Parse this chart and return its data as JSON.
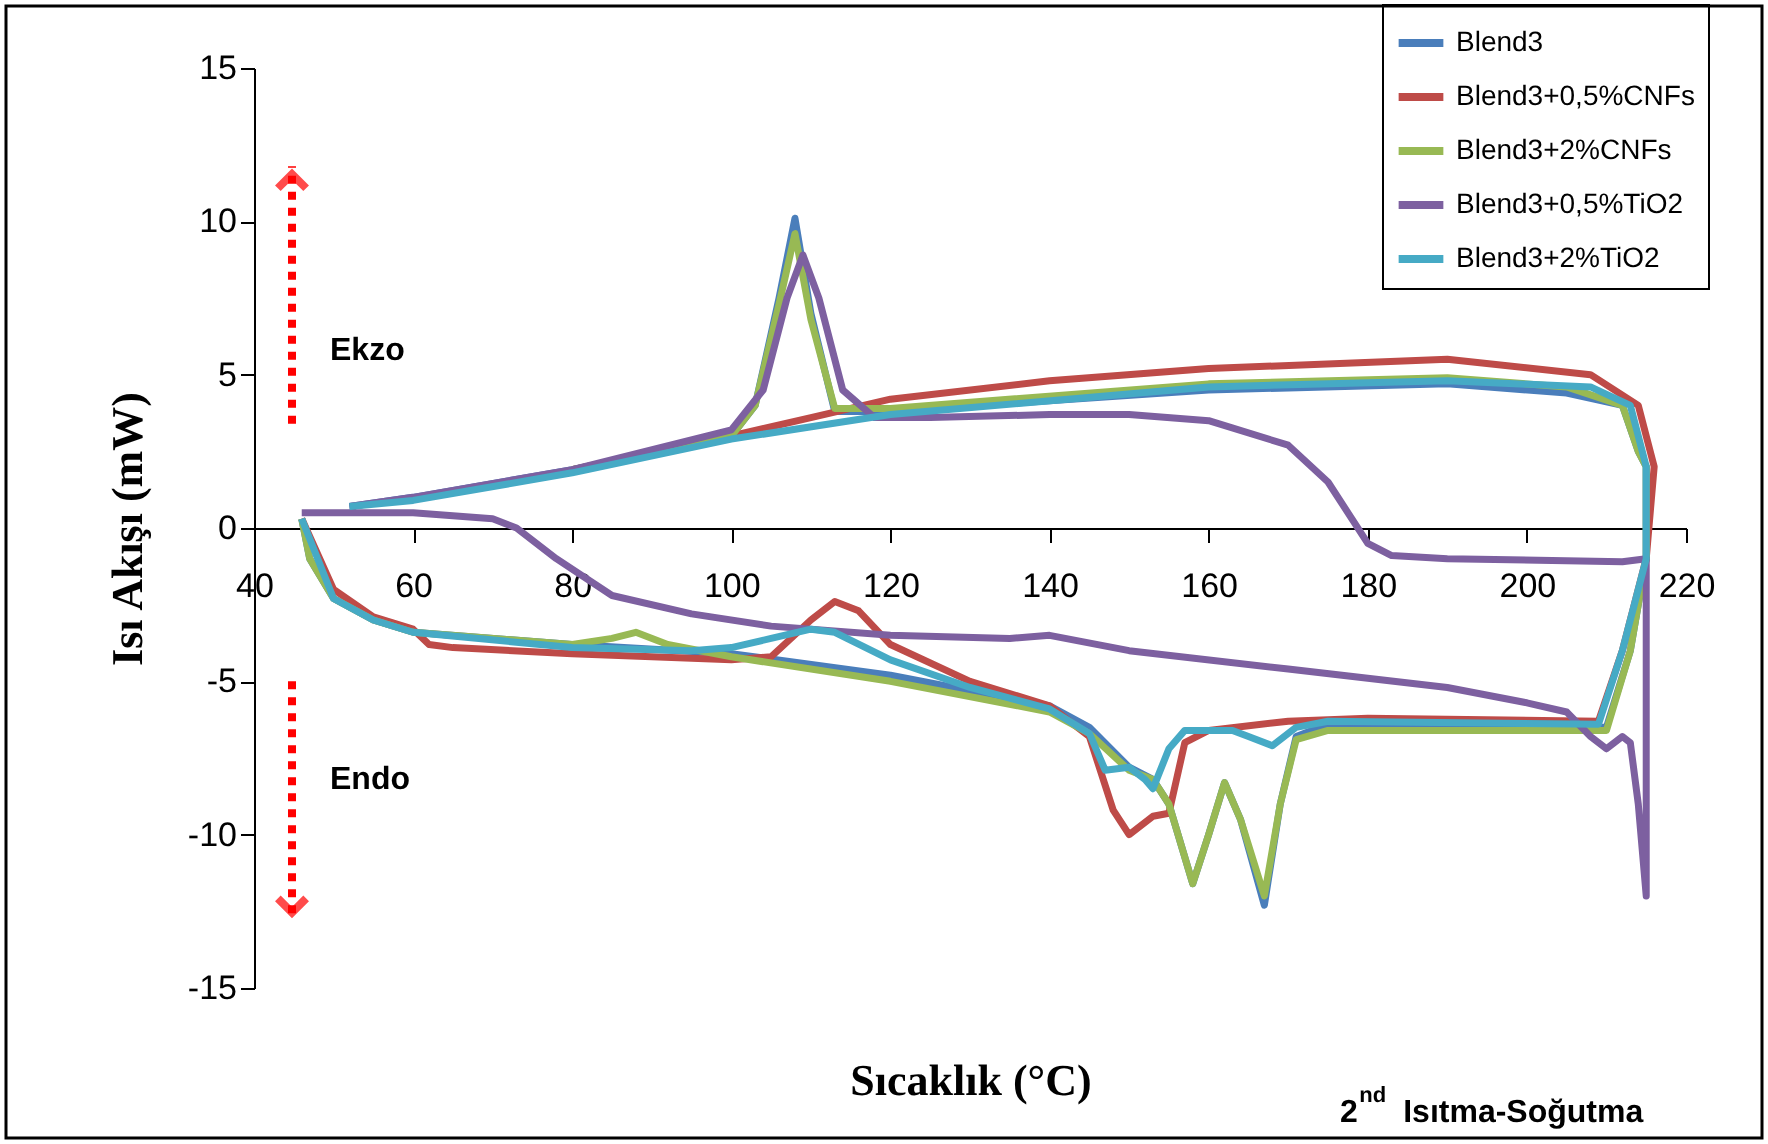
{
  "chart_data": {
    "type": "line",
    "xlabel": "Sıcaklık (°C)",
    "ylabel": "Isı Akışı (mW)",
    "xlim": [
      40,
      220
    ],
    "xticks": [
      40,
      60,
      80,
      100,
      120,
      140,
      160,
      180,
      200,
      220
    ],
    "ylim": [
      -15,
      15
    ],
    "yticks": [
      -15,
      -10,
      -5,
      0,
      5,
      10,
      15
    ],
    "grid": false,
    "legend": "top right",
    "marker": "none",
    "line_style": "solid",
    "annotations": [
      "Ekzo",
      "Endo",
      "2$^{nd}$ Isıtma-Soğutma"
    ],
    "series": [
      {
        "name": "Blend3",
        "color": "#4a7ebb",
        "x": [
          46,
          47,
          50,
          55,
          60,
          80,
          100,
          120,
          140,
          145,
          150,
          153,
          155,
          158,
          160,
          162,
          164,
          167,
          169,
          171,
          175,
          200,
          210,
          213,
          215,
          215,
          214,
          212,
          205,
          190,
          160,
          120,
          113,
          110,
          108,
          106,
          103,
          100,
          80,
          60,
          52
        ],
        "values": [
          0.3,
          -1,
          -2.3,
          -3,
          -3.4,
          -3.8,
          -4.1,
          -4.8,
          -5.8,
          -6.5,
          -7.8,
          -8.2,
          -9,
          -11.6,
          -10,
          -8.3,
          -9.5,
          -12.3,
          -9,
          -6.8,
          -6.4,
          -6.5,
          -6.5,
          -4,
          -1,
          2,
          2.5,
          4,
          4.4,
          4.7,
          4.5,
          3.8,
          3.8,
          7,
          10.1,
          7.5,
          4,
          3,
          1.9,
          1,
          0.7
        ]
      },
      {
        "name": "Blend3+0,5%CNFs",
        "color": "#be4b48",
        "x": [
          46,
          50,
          55,
          60,
          62,
          65,
          80,
          100,
          105,
          110,
          113,
          116,
          120,
          130,
          140,
          145,
          148,
          150,
          153,
          155,
          157,
          160,
          170,
          180,
          209,
          212,
          215,
          216,
          214,
          208,
          190,
          160,
          140,
          120,
          110,
          100,
          80
        ],
        "values": [
          0.3,
          -2,
          -2.9,
          -3.3,
          -3.8,
          -3.9,
          -4.1,
          -4.3,
          -4.2,
          -3,
          -2.4,
          -2.7,
          -3.8,
          -5,
          -5.8,
          -6.8,
          -9.2,
          -10,
          -9.4,
          -9.3,
          -7,
          -6.6,
          -6.3,
          -6.2,
          -6.3,
          -4,
          -1,
          2,
          4,
          5,
          5.5,
          5.2,
          4.8,
          4.2,
          3.6,
          3,
          1.9
        ]
      },
      {
        "name": "Blend3+2%CNFs",
        "color": "#98b954",
        "x": [
          46,
          47,
          50,
          55,
          60,
          80,
          85,
          88,
          92,
          100,
          120,
          140,
          145,
          150,
          153,
          155,
          158,
          160,
          162,
          164,
          167,
          169,
          171,
          175,
          200,
          210,
          213,
          215,
          215,
          214,
          212,
          205,
          190,
          160,
          120,
          113,
          110,
          108,
          106,
          103,
          100,
          80
        ],
        "values": [
          0.3,
          -1,
          -2.3,
          -3,
          -3.4,
          -3.8,
          -3.6,
          -3.4,
          -3.8,
          -4.2,
          -5,
          -6,
          -6.7,
          -7.9,
          -8.2,
          -9,
          -11.6,
          -10,
          -8.3,
          -9.5,
          -12,
          -9,
          -6.9,
          -6.6,
          -6.6,
          -6.6,
          -4,
          -1,
          2,
          2.5,
          4,
          4.6,
          4.9,
          4.7,
          3.9,
          3.9,
          6.8,
          9.6,
          7.3,
          4,
          3,
          1.9
        ]
      },
      {
        "name": "Blend3+0,5%TiO2",
        "color": "#7d60a0",
        "x": [
          46,
          60,
          70,
          73,
          78,
          85,
          95,
          105,
          120,
          135,
          140,
          150,
          170,
          190,
          200,
          205,
          208,
          210,
          212,
          213,
          214,
          215,
          215,
          212,
          190,
          183,
          180,
          175,
          170,
          160,
          150,
          140,
          125,
          118,
          114,
          111,
          109,
          107,
          104,
          100,
          80,
          60,
          52
        ],
        "values": [
          0.5,
          0.5,
          0.3,
          0,
          -1,
          -2.2,
          -2.8,
          -3.2,
          -3.5,
          -3.6,
          -3.5,
          -4,
          -4.6,
          -5.2,
          -5.7,
          -6,
          -6.8,
          -7.2,
          -6.8,
          -7,
          -9,
          -12,
          -1,
          -1.1,
          -1,
          -0.9,
          -0.5,
          1.5,
          2.7,
          3.5,
          3.7,
          3.7,
          3.6,
          3.6,
          4.5,
          7.5,
          8.9,
          7.5,
          4.5,
          3.2,
          1.9,
          1,
          0.7
        ]
      },
      {
        "name": "Blend3+2%TiO2",
        "color": "#46aac5",
        "x": [
          46,
          50,
          55,
          60,
          80,
          95,
          100,
          105,
          110,
          113,
          120,
          130,
          140,
          145,
          147,
          150,
          152,
          153,
          155,
          157,
          160,
          163,
          165,
          168,
          171,
          175,
          209,
          212,
          215,
          215,
          213,
          208,
          190,
          160,
          120,
          100,
          80,
          60,
          52
        ],
        "values": [
          0.3,
          -2.3,
          -3,
          -3.4,
          -3.9,
          -4,
          -3.9,
          -3.6,
          -3.3,
          -3.4,
          -4.3,
          -5.2,
          -5.9,
          -6.7,
          -7.9,
          -7.8,
          -8.2,
          -8.5,
          -7.2,
          -6.6,
          -6.6,
          -6.6,
          -6.8,
          -7.1,
          -6.5,
          -6.3,
          -6.4,
          -4,
          -1,
          2,
          4,
          4.6,
          4.8,
          4.6,
          3.7,
          2.9,
          1.8,
          0.9,
          0.7
        ]
      }
    ]
  }
}
